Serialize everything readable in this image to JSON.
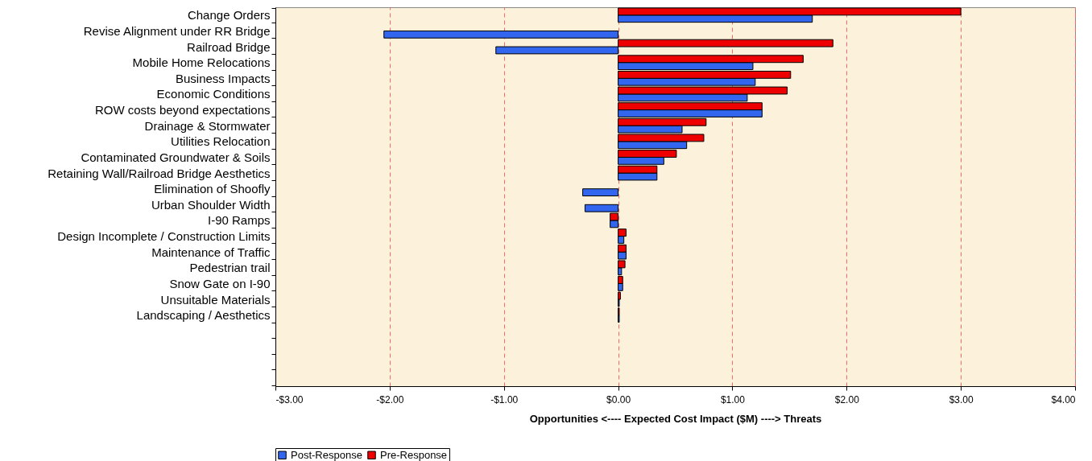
{
  "chart_data": {
    "type": "bar",
    "orientation": "horizontal",
    "xlabel": "Opportunities <---- Expected Cost Impact ($M) ----> Threats",
    "categories": [
      "Change Orders",
      "Revise Alignment under RR Bridge",
      "Railroad Bridge",
      "Mobile Home Relocations",
      "Business Impacts",
      "Economic Conditions",
      "ROW costs beyond expectations",
      "Drainage & Stormwater",
      "Utilities Relocation",
      "Contaminated Groundwater & Soils",
      "Retaining Wall/Railroad Bridge Aesthetics",
      "Elimination of Shoofly",
      "Urban Shoulder Width",
      "I-90 Ramps",
      "Design Incomplete / Construction Limits",
      "Maintenance of Traffic",
      "Pedestrian trail",
      "Snow Gate on I-90",
      "Unsuitable Materials",
      "Landscaping / Aesthetics",
      null,
      null,
      null,
      null
    ],
    "series": [
      {
        "name": "Post-Response",
        "color": "#3366ee",
        "values": [
          1.7,
          -2.05,
          -1.07,
          1.18,
          1.2,
          1.13,
          1.26,
          0.56,
          0.6,
          0.4,
          0.34,
          -0.31,
          -0.29,
          -0.07,
          0.05,
          0.07,
          0.03,
          0.04,
          0.01,
          0.01,
          null,
          null,
          null,
          null
        ]
      },
      {
        "name": "Pre-Response",
        "color": "#ee0000",
        "values": [
          3.0,
          null,
          1.88,
          1.62,
          1.51,
          1.48,
          1.26,
          0.77,
          0.75,
          0.51,
          0.34,
          null,
          null,
          -0.07,
          0.07,
          0.07,
          0.06,
          0.04,
          0.02,
          0.01,
          null,
          null,
          null,
          null
        ]
      }
    ],
    "xlim": [
      -3,
      4
    ],
    "xticks": [
      {
        "value": -3,
        "label": "-$3.00"
      },
      {
        "value": -2,
        "label": "-$2.00"
      },
      {
        "value": -1,
        "label": "-$1.00"
      },
      {
        "value": 0,
        "label": "$0.00"
      },
      {
        "value": 1,
        "label": "$1.00"
      },
      {
        "value": 2,
        "label": "$2.00"
      },
      {
        "value": 3,
        "label": "$3.00"
      },
      {
        "value": 4,
        "label": "$4.00"
      }
    ],
    "grid": "x",
    "legend": "bottom"
  }
}
